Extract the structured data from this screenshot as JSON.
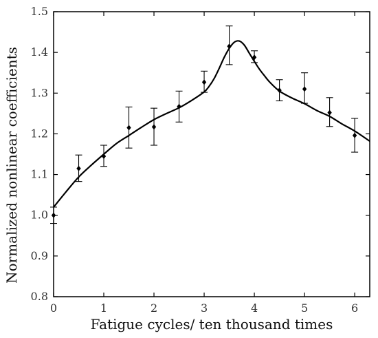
{
  "chart_data": {
    "type": "scatter",
    "title": "",
    "xlabel": "Fatigue cycles/ ten thousand times",
    "ylabel": "Normalized nonlinear coefficients",
    "xlim": [
      0,
      6.3
    ],
    "ylim": [
      0.8,
      1.5
    ],
    "grid": false,
    "x_ticks": [
      "0",
      "1",
      "2",
      "3",
      "4",
      "5",
      "6"
    ],
    "y_ticks": [
      "0.8",
      "0.9",
      "1.0",
      "1.1",
      "1.2",
      "1.3",
      "1.4",
      "1.5"
    ],
    "points": [
      {
        "x": 0.0,
        "y": 1.0,
        "err_low": 0.98,
        "err_high": 1.02
      },
      {
        "x": 0.5,
        "y": 1.115,
        "err_low": 1.083,
        "err_high": 1.148
      },
      {
        "x": 1.0,
        "y": 1.145,
        "err_low": 1.12,
        "err_high": 1.172
      },
      {
        "x": 1.5,
        "y": 1.215,
        "err_low": 1.165,
        "err_high": 1.266
      },
      {
        "x": 2.0,
        "y": 1.217,
        "err_low": 1.172,
        "err_high": 1.263
      },
      {
        "x": 2.5,
        "y": 1.267,
        "err_low": 1.229,
        "err_high": 1.305
      },
      {
        "x": 3.0,
        "y": 1.327,
        "err_low": 1.302,
        "err_high": 1.354
      },
      {
        "x": 3.5,
        "y": 1.415,
        "err_low": 1.37,
        "err_high": 1.465
      },
      {
        "x": 4.0,
        "y": 1.388,
        "err_low": 1.375,
        "err_high": 1.404
      },
      {
        "x": 4.5,
        "y": 1.307,
        "err_low": 1.281,
        "err_high": 1.333
      },
      {
        "x": 5.0,
        "y": 1.31,
        "err_low": 1.275,
        "err_high": 1.35
      },
      {
        "x": 5.5,
        "y": 1.252,
        "err_low": 1.218,
        "err_high": 1.289
      },
      {
        "x": 6.0,
        "y": 1.196,
        "err_low": 1.155,
        "err_high": 1.238
      }
    ],
    "fit_curve": {
      "x": [
        0.0,
        0.25,
        0.5,
        0.75,
        1.0,
        1.25,
        1.5,
        1.75,
        2.0,
        2.25,
        2.5,
        2.75,
        3.0,
        3.1,
        3.2,
        3.3,
        3.4,
        3.5,
        3.6,
        3.7,
        3.8,
        3.9,
        4.0,
        4.1,
        4.2,
        4.3,
        4.5,
        4.75,
        5.0,
        5.25,
        5.5,
        5.75,
        6.0,
        6.3
      ],
      "y": [
        1.02,
        1.058,
        1.094,
        1.123,
        1.15,
        1.176,
        1.196,
        1.216,
        1.235,
        1.25,
        1.264,
        1.282,
        1.303,
        1.317,
        1.336,
        1.361,
        1.388,
        1.41,
        1.425,
        1.428,
        1.418,
        1.398,
        1.378,
        1.359,
        1.343,
        1.328,
        1.305,
        1.288,
        1.274,
        1.257,
        1.243,
        1.224,
        1.207,
        1.182
      ]
    }
  }
}
